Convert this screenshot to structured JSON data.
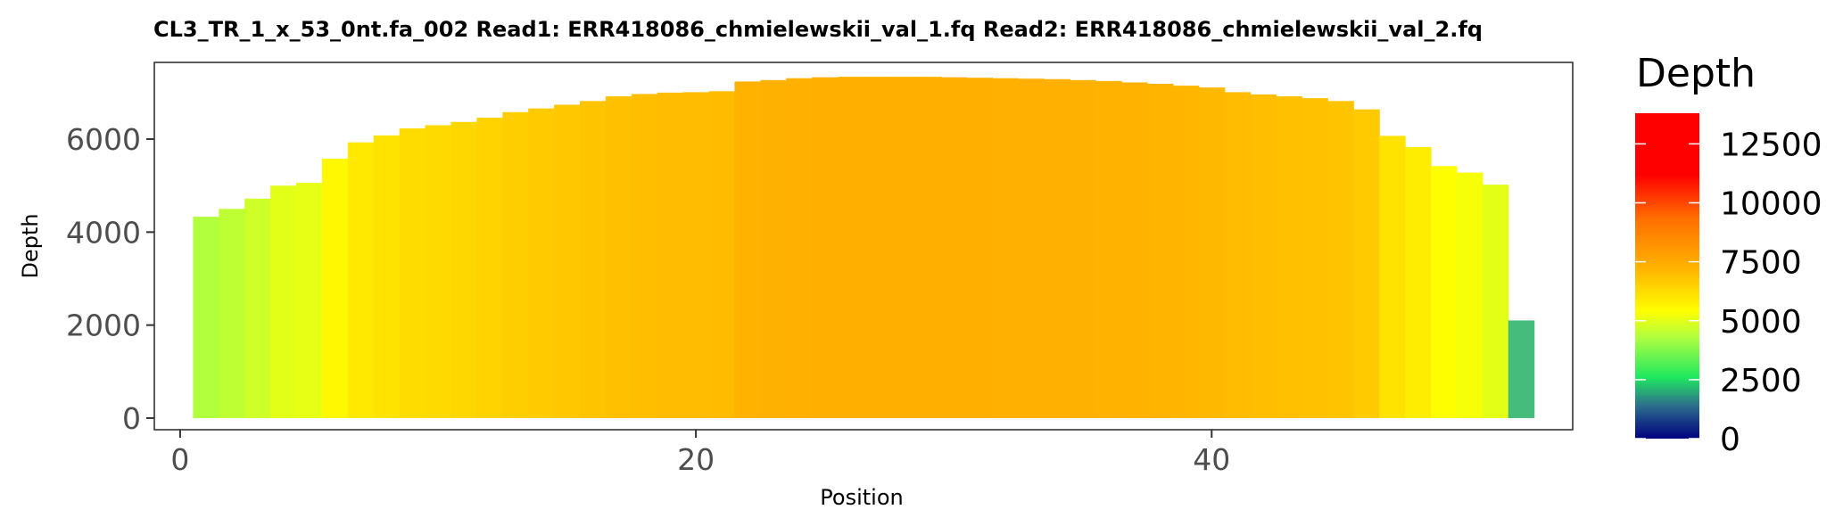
{
  "chart_data": {
    "type": "bar",
    "title": "CL3_TR_1_x_53_0nt.fa_002   Read1: ERR418086_chmielewskii_val_1.fq   Read2: ERR418086_chmielewskii_val_2.fq",
    "xlabel": "Position",
    "ylabel": "Depth",
    "xlim": [
      -1,
      54
    ],
    "ylim": [
      -250,
      7650
    ],
    "x_ticks": [
      0,
      20,
      40
    ],
    "y_ticks": [
      0,
      2000,
      4000,
      6000
    ],
    "x_tick_labels": [
      "0",
      "20",
      "40"
    ],
    "y_tick_labels": [
      "0",
      "2000",
      "4000",
      "6000"
    ],
    "grid": false,
    "legend_position": "right",
    "x": [
      1,
      2,
      3,
      4,
      5,
      6,
      7,
      8,
      9,
      10,
      11,
      12,
      13,
      14,
      15,
      16,
      17,
      18,
      19,
      20,
      21,
      22,
      23,
      24,
      25,
      26,
      27,
      28,
      29,
      30,
      31,
      32,
      33,
      34,
      35,
      36,
      37,
      38,
      39,
      40,
      41,
      42,
      43,
      44,
      45,
      46,
      47,
      48,
      49,
      50,
      51,
      52,
      53
    ],
    "values": [
      4330,
      4500,
      4720,
      5000,
      5060,
      5580,
      5930,
      6080,
      6230,
      6300,
      6370,
      6460,
      6580,
      6660,
      6740,
      6820,
      6920,
      6970,
      7000,
      7010,
      7030,
      7240,
      7270,
      7310,
      7330,
      7340,
      7340,
      7340,
      7340,
      7330,
      7320,
      7310,
      7300,
      7290,
      7270,
      7250,
      7220,
      7190,
      7150,
      7110,
      7010,
      6960,
      6920,
      6880,
      6820,
      6640,
      6070,
      5830,
      5420,
      5280,
      5020,
      2100,
      0
    ],
    "colorbar": {
      "title": "Depth",
      "min": 0,
      "max": 13800,
      "ticks": [
        0,
        2500,
        5000,
        7500,
        10000,
        12500
      ],
      "tick_labels": [
        "0",
        "2500",
        "5000",
        "7500",
        "10000",
        "12500"
      ],
      "gradient": [
        {
          "value": 0,
          "color": "#00007f"
        },
        {
          "value": 1400,
          "color": "#2d6e8c"
        },
        {
          "value": 2600,
          "color": "#1fe860"
        },
        {
          "value": 4300,
          "color": "#b0ff40"
        },
        {
          "value": 5400,
          "color": "#ffff00"
        },
        {
          "value": 7300,
          "color": "#ffb000"
        },
        {
          "value": 9300,
          "color": "#ff7000"
        },
        {
          "value": 11200,
          "color": "#ff0000"
        },
        {
          "value": 13800,
          "color": "#ff0000"
        }
      ]
    },
    "special_bar_color": {
      "x": 52,
      "color": "#46bc7c"
    }
  }
}
